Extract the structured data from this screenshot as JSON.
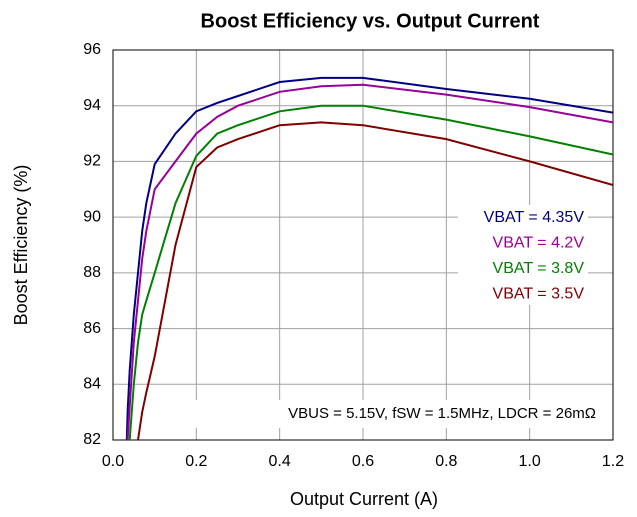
{
  "chart_data": {
    "type": "line",
    "title": "Boost Efficiency vs. Output Current",
    "x_label": "Output Current (A)",
    "y_label": "Boost Efficiency (%)",
    "annotation": "VBUS = 5.15V, fSW = 1.5MHz, LDCR = 26mΩ",
    "x": [
      0.033,
      0.035,
      0.04,
      0.05,
      0.06,
      0.07,
      0.08,
      0.1,
      0.15,
      0.2,
      0.25,
      0.3,
      0.4,
      0.5,
      0.6,
      0.8,
      1.0,
      1.2
    ],
    "series": [
      {
        "name": "VBAT = 4.35V",
        "color": "#000080",
        "values": [
          82,
          83,
          84.5,
          86.5,
          88,
          89.5,
          90.5,
          91.9,
          93,
          93.8,
          94.1,
          94.35,
          94.85,
          95.0,
          95.0,
          94.6,
          94.25,
          93.75
        ]
      },
      {
        "name": "VBAT = 4.2V",
        "color": "#990099",
        "values": [
          null,
          82,
          83.2,
          85.5,
          87,
          88.5,
          89.5,
          91,
          92,
          93,
          93.6,
          94.0,
          94.5,
          94.7,
          94.75,
          94.4,
          93.95,
          93.4
        ]
      },
      {
        "name": "VBAT = 3.8V",
        "color": "#008000",
        "values": [
          null,
          null,
          82,
          84,
          85.5,
          86.5,
          87,
          88,
          90.5,
          92.2,
          93,
          93.3,
          93.8,
          94,
          94,
          93.5,
          92.9,
          92.25
        ]
      },
      {
        "name": "VBAT = 3.5V",
        "color": "#800000",
        "values": [
          null,
          null,
          null,
          null,
          82,
          83,
          83.7,
          85,
          89,
          91.8,
          92.5,
          92.8,
          93.3,
          93.4,
          93.3,
          92.8,
          92,
          91.15
        ]
      }
    ],
    "xlim": [
      0,
      1.2
    ],
    "xticks": [
      {
        "value": 0,
        "label": "0.0"
      },
      0.2,
      0.4,
      0.6,
      0.8,
      {
        "value": 1,
        "label": "1.0"
      },
      1.2
    ],
    "ylim": [
      82,
      96
    ],
    "yticks": [
      82,
      84,
      86,
      88,
      90,
      92,
      94,
      96
    ],
    "grid": true,
    "legend": "right"
  }
}
